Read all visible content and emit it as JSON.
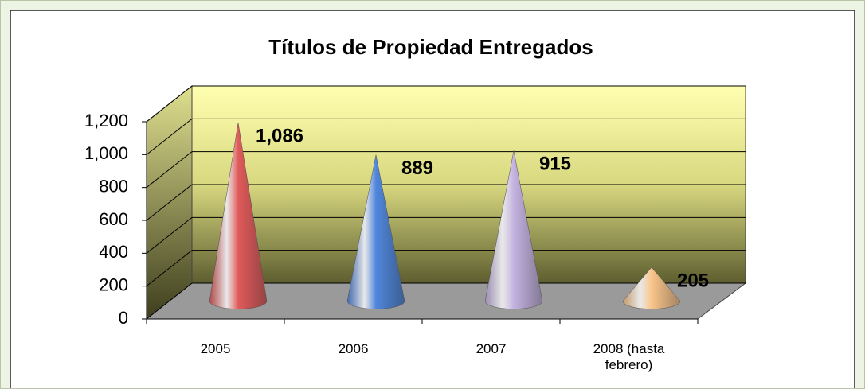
{
  "chart_data": {
    "type": "cone3d",
    "title": "Títulos de Propiedad Entregados",
    "categories": [
      "2005",
      "2006",
      "2007",
      "2008 (hasta febrero)"
    ],
    "values": [
      1086,
      889,
      915,
      205
    ],
    "value_labels": [
      "1,086",
      "889",
      "915",
      "205"
    ],
    "colors": [
      "#e05a5a",
      "#4f86dc",
      "#c4b2e0",
      "#f9c48a"
    ],
    "ylim": [
      0,
      1200
    ],
    "yticks": [
      0,
      200,
      400,
      600,
      800,
      {
        "value": 1000,
        "label": "1,000"
      },
      {
        "value": 1200,
        "label": "1,200"
      }
    ],
    "grid": true
  }
}
